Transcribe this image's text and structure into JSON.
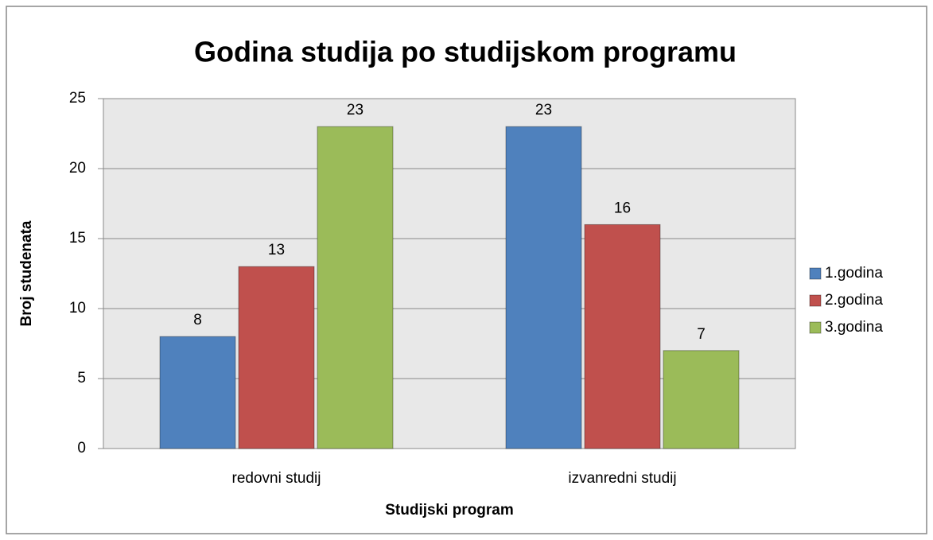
{
  "chart_data": {
    "type": "bar",
    "title": "Godina studija po studijskom programu",
    "x_label": "Studijski program",
    "y_label": "Broj studenata",
    "categories": [
      "redovni studij",
      "izvanredni studij"
    ],
    "series": [
      {
        "name": "1.godina",
        "color": "#4f81bd",
        "values": [
          8,
          23
        ]
      },
      {
        "name": "2.godina",
        "color": "#c0504d",
        "values": [
          13,
          16
        ]
      },
      {
        "name": "3.godina",
        "color": "#9bbb59",
        "values": [
          23,
          7
        ]
      }
    ],
    "ylim": [
      0,
      25
    ],
    "yticks": [
      0,
      5,
      10,
      15,
      20,
      25
    ],
    "grid": true,
    "legend": "right"
  }
}
